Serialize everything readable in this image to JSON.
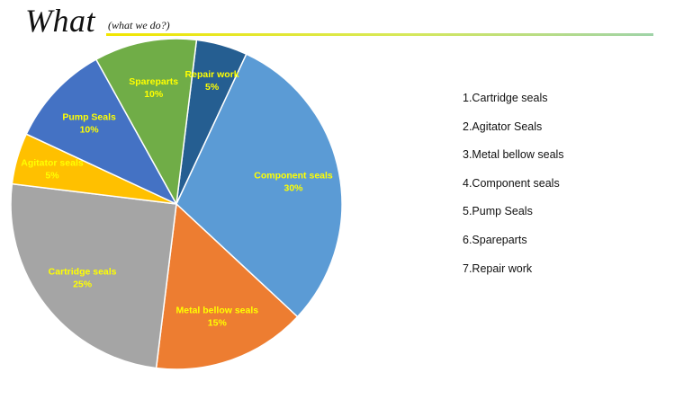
{
  "header": {
    "title": "What",
    "subtitle": "(what we do?)"
  },
  "colors": {
    "label_text": "#FFFF00",
    "slice_border": "#FFFFFF",
    "rule_start": "#F2E600",
    "rule_end": "#9FD3A8"
  },
  "chart_data": {
    "type": "pie",
    "slices": [
      {
        "label": "Repair work",
        "value": 5,
        "percent_label": "5%",
        "color": "#255E91"
      },
      {
        "label": "Component seals",
        "value": 30,
        "percent_label": "30%",
        "color": "#5B9BD5"
      },
      {
        "label": "Metal bellow seals",
        "value": 15,
        "percent_label": "15%",
        "color": "#ED7D31"
      },
      {
        "label": "Cartridge seals",
        "value": 25,
        "percent_label": "25%",
        "color": "#A5A5A5"
      },
      {
        "label": "Agitator seals",
        "value": 5,
        "percent_label": "5%",
        "color": "#FFC000"
      },
      {
        "label": "Pump Seals",
        "value": 10,
        "percent_label": "10%",
        "color": "#4472C4"
      },
      {
        "label": "Spareparts",
        "value": 10,
        "percent_label": "10%",
        "color": "#70AD47"
      }
    ],
    "legend": [
      "1.Cartridge seals",
      "2.Agitator Seals",
      "3.Metal bellow seals",
      "4.Component seals",
      "5.Pump Seals",
      "6.Spareparts",
      "7.Repair work"
    ]
  }
}
